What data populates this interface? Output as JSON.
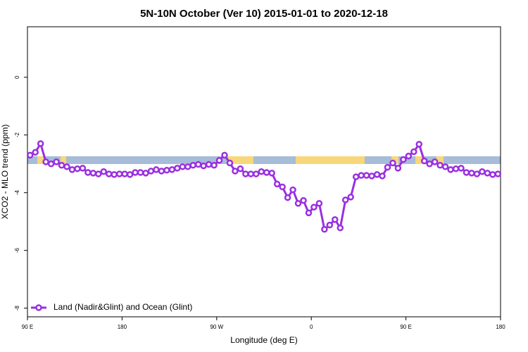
{
  "chart_data": {
    "type": "line",
    "title": "5N-10N October (Ver 10)   2015-01-01 to 2020-12-18",
    "xlabel": "Longitude (deg E)",
    "ylabel": "XCO2 - MLO trend (ppm)",
    "x": [
      92.5,
      97.5,
      102.5,
      107.5,
      112.5,
      117.5,
      122.5,
      127.5,
      132.5,
      137.5,
      142.5,
      147.5,
      152.5,
      157.5,
      162.5,
      167.5,
      172.5,
      177.5,
      182.5,
      187.5,
      192.5,
      197.5,
      202.5,
      207.5,
      212.5,
      217.5,
      222.5,
      227.5,
      232.5,
      237.5,
      242.5,
      247.5,
      252.5,
      257.5,
      262.5,
      267.5,
      272.5,
      277.5,
      282.5,
      287.5,
      292.5,
      297.5,
      302.5,
      307.5,
      312.5,
      317.5,
      322.5,
      327.5,
      332.5,
      337.5,
      342.5,
      347.5,
      352.5,
      357.5,
      362.5,
      367.5,
      372.5,
      377.5,
      382.5,
      387.5,
      392.5,
      397.5,
      402.5,
      407.5,
      412.5,
      417.5,
      422.5,
      427.5,
      432.5,
      437.5,
      442.5,
      447.5,
      452.5,
      457.5,
      462.5,
      467.5,
      472.5,
      477.5,
      482.5,
      487.5,
      492.5,
      497.5,
      502.5,
      507.5,
      512.5,
      517.5,
      522.5,
      527.5,
      532.5,
      537.5
    ],
    "series": [
      {
        "name": "Land (Nadir&Glint) and Ocean (Glint)",
        "color": "#9a2fe0",
        "values": [
          -2.7,
          -2.6,
          -2.3,
          -2.93,
          -3.0,
          -2.93,
          -3.05,
          -3.1,
          -3.2,
          -3.17,
          -3.15,
          -3.3,
          -3.32,
          -3.35,
          -3.27,
          -3.35,
          -3.37,
          -3.35,
          -3.35,
          -3.37,
          -3.3,
          -3.3,
          -3.32,
          -3.25,
          -3.2,
          -3.25,
          -3.22,
          -3.2,
          -3.15,
          -3.1,
          -3.1,
          -3.05,
          -3.02,
          -3.07,
          -3.02,
          -3.05,
          -2.88,
          -2.7,
          -2.97,
          -3.25,
          -3.17,
          -3.35,
          -3.35,
          -3.35,
          -3.27,
          -3.3,
          -3.32,
          -3.7,
          -3.8,
          -4.17,
          -3.9,
          -4.37,
          -4.27,
          -4.7,
          -4.5,
          -4.37,
          -5.27,
          -5.12,
          -4.93,
          -5.22,
          -4.25,
          -4.15,
          -3.45,
          -3.4,
          -3.4,
          -3.42,
          -3.37,
          -3.42,
          -3.12,
          -2.97,
          -3.15,
          -2.85,
          -2.73,
          -2.58,
          -2.32,
          -2.9,
          -3.0,
          -2.93,
          -3.05,
          -3.1,
          -3.2,
          -3.17,
          -3.15,
          -3.3,
          -3.32,
          -3.35,
          -3.27,
          -3.32,
          -3.37,
          -3.35
        ]
      }
    ],
    "xlim": [
      90,
      540
    ],
    "xticks": [
      {
        "value": 90,
        "label": "90 E"
      },
      180,
      {
        "value": 270,
        "label": "90 W"
      },
      {
        "value": 360,
        "label": "0"
      },
      {
        "value": 450,
        "label": "90 E"
      },
      {
        "value": 540,
        "label": "180"
      }
    ],
    "ylim": [
      -8.3,
      1.75
    ],
    "yticks": [
      0,
      -2,
      -4,
      -6,
      -8
    ],
    "legend": "lower left"
  }
}
